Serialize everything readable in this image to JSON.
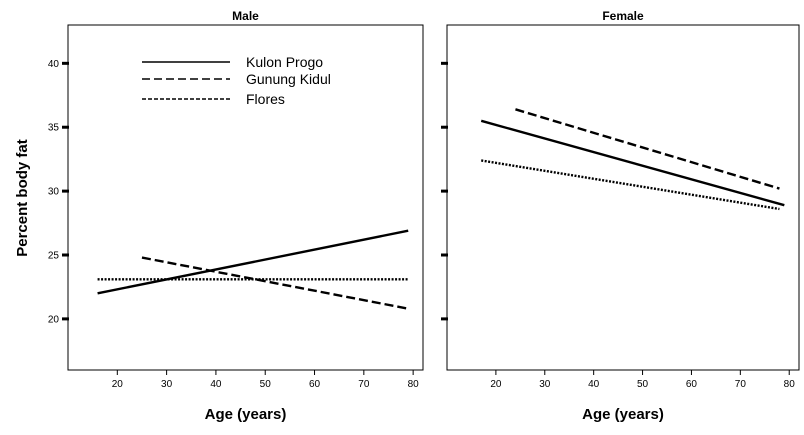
{
  "chart_data": {
    "type": "line",
    "ylabel": "Percent body fat",
    "ylim": [
      16,
      43
    ],
    "legend": {
      "placement": "top-left of Male panel",
      "entries": [
        {
          "label": "Kulon Progo",
          "style": "solid"
        },
        {
          "label": "Gunung Kidul",
          "style": "dashed"
        },
        {
          "label": "Flores",
          "style": "dotted"
        }
      ]
    },
    "panels": [
      {
        "title": "Male",
        "xlabel": "Age (years)",
        "xlim": [
          10,
          82
        ],
        "xticks": [
          "20",
          "30",
          "40",
          "50",
          "60",
          "70",
          "80"
        ],
        "yticks": [
          "20",
          "25",
          "30",
          "35",
          "40"
        ],
        "series": [
          {
            "name": "Kulon Progo",
            "style": "solid",
            "x": [
              16,
              79
            ],
            "y": [
              22.0,
              26.9
            ]
          },
          {
            "name": "Gunung Kidul",
            "style": "dashed",
            "x": [
              25,
              79
            ],
            "y": [
              24.8,
              20.8
            ]
          },
          {
            "name": "Flores",
            "style": "dotted",
            "x": [
              16,
              79
            ],
            "y": [
              23.1,
              23.1
            ]
          }
        ]
      },
      {
        "title": "Female",
        "xlabel": "Age (years)",
        "xlim": [
          10,
          82
        ],
        "xticks": [
          "20",
          "30",
          "40",
          "50",
          "60",
          "70",
          "80"
        ],
        "yticks": [
          "20",
          "25",
          "30",
          "35",
          "40"
        ],
        "series": [
          {
            "name": "Kulon Progo",
            "style": "solid",
            "x": [
              17,
              79
            ],
            "y": [
              35.5,
              28.9
            ]
          },
          {
            "name": "Gunung Kidul",
            "style": "dashed",
            "x": [
              24,
              78
            ],
            "y": [
              36.4,
              30.2
            ]
          },
          {
            "name": "Flores",
            "style": "dotted",
            "x": [
              17,
              78
            ],
            "y": [
              32.4,
              28.6
            ]
          }
        ]
      }
    ]
  }
}
